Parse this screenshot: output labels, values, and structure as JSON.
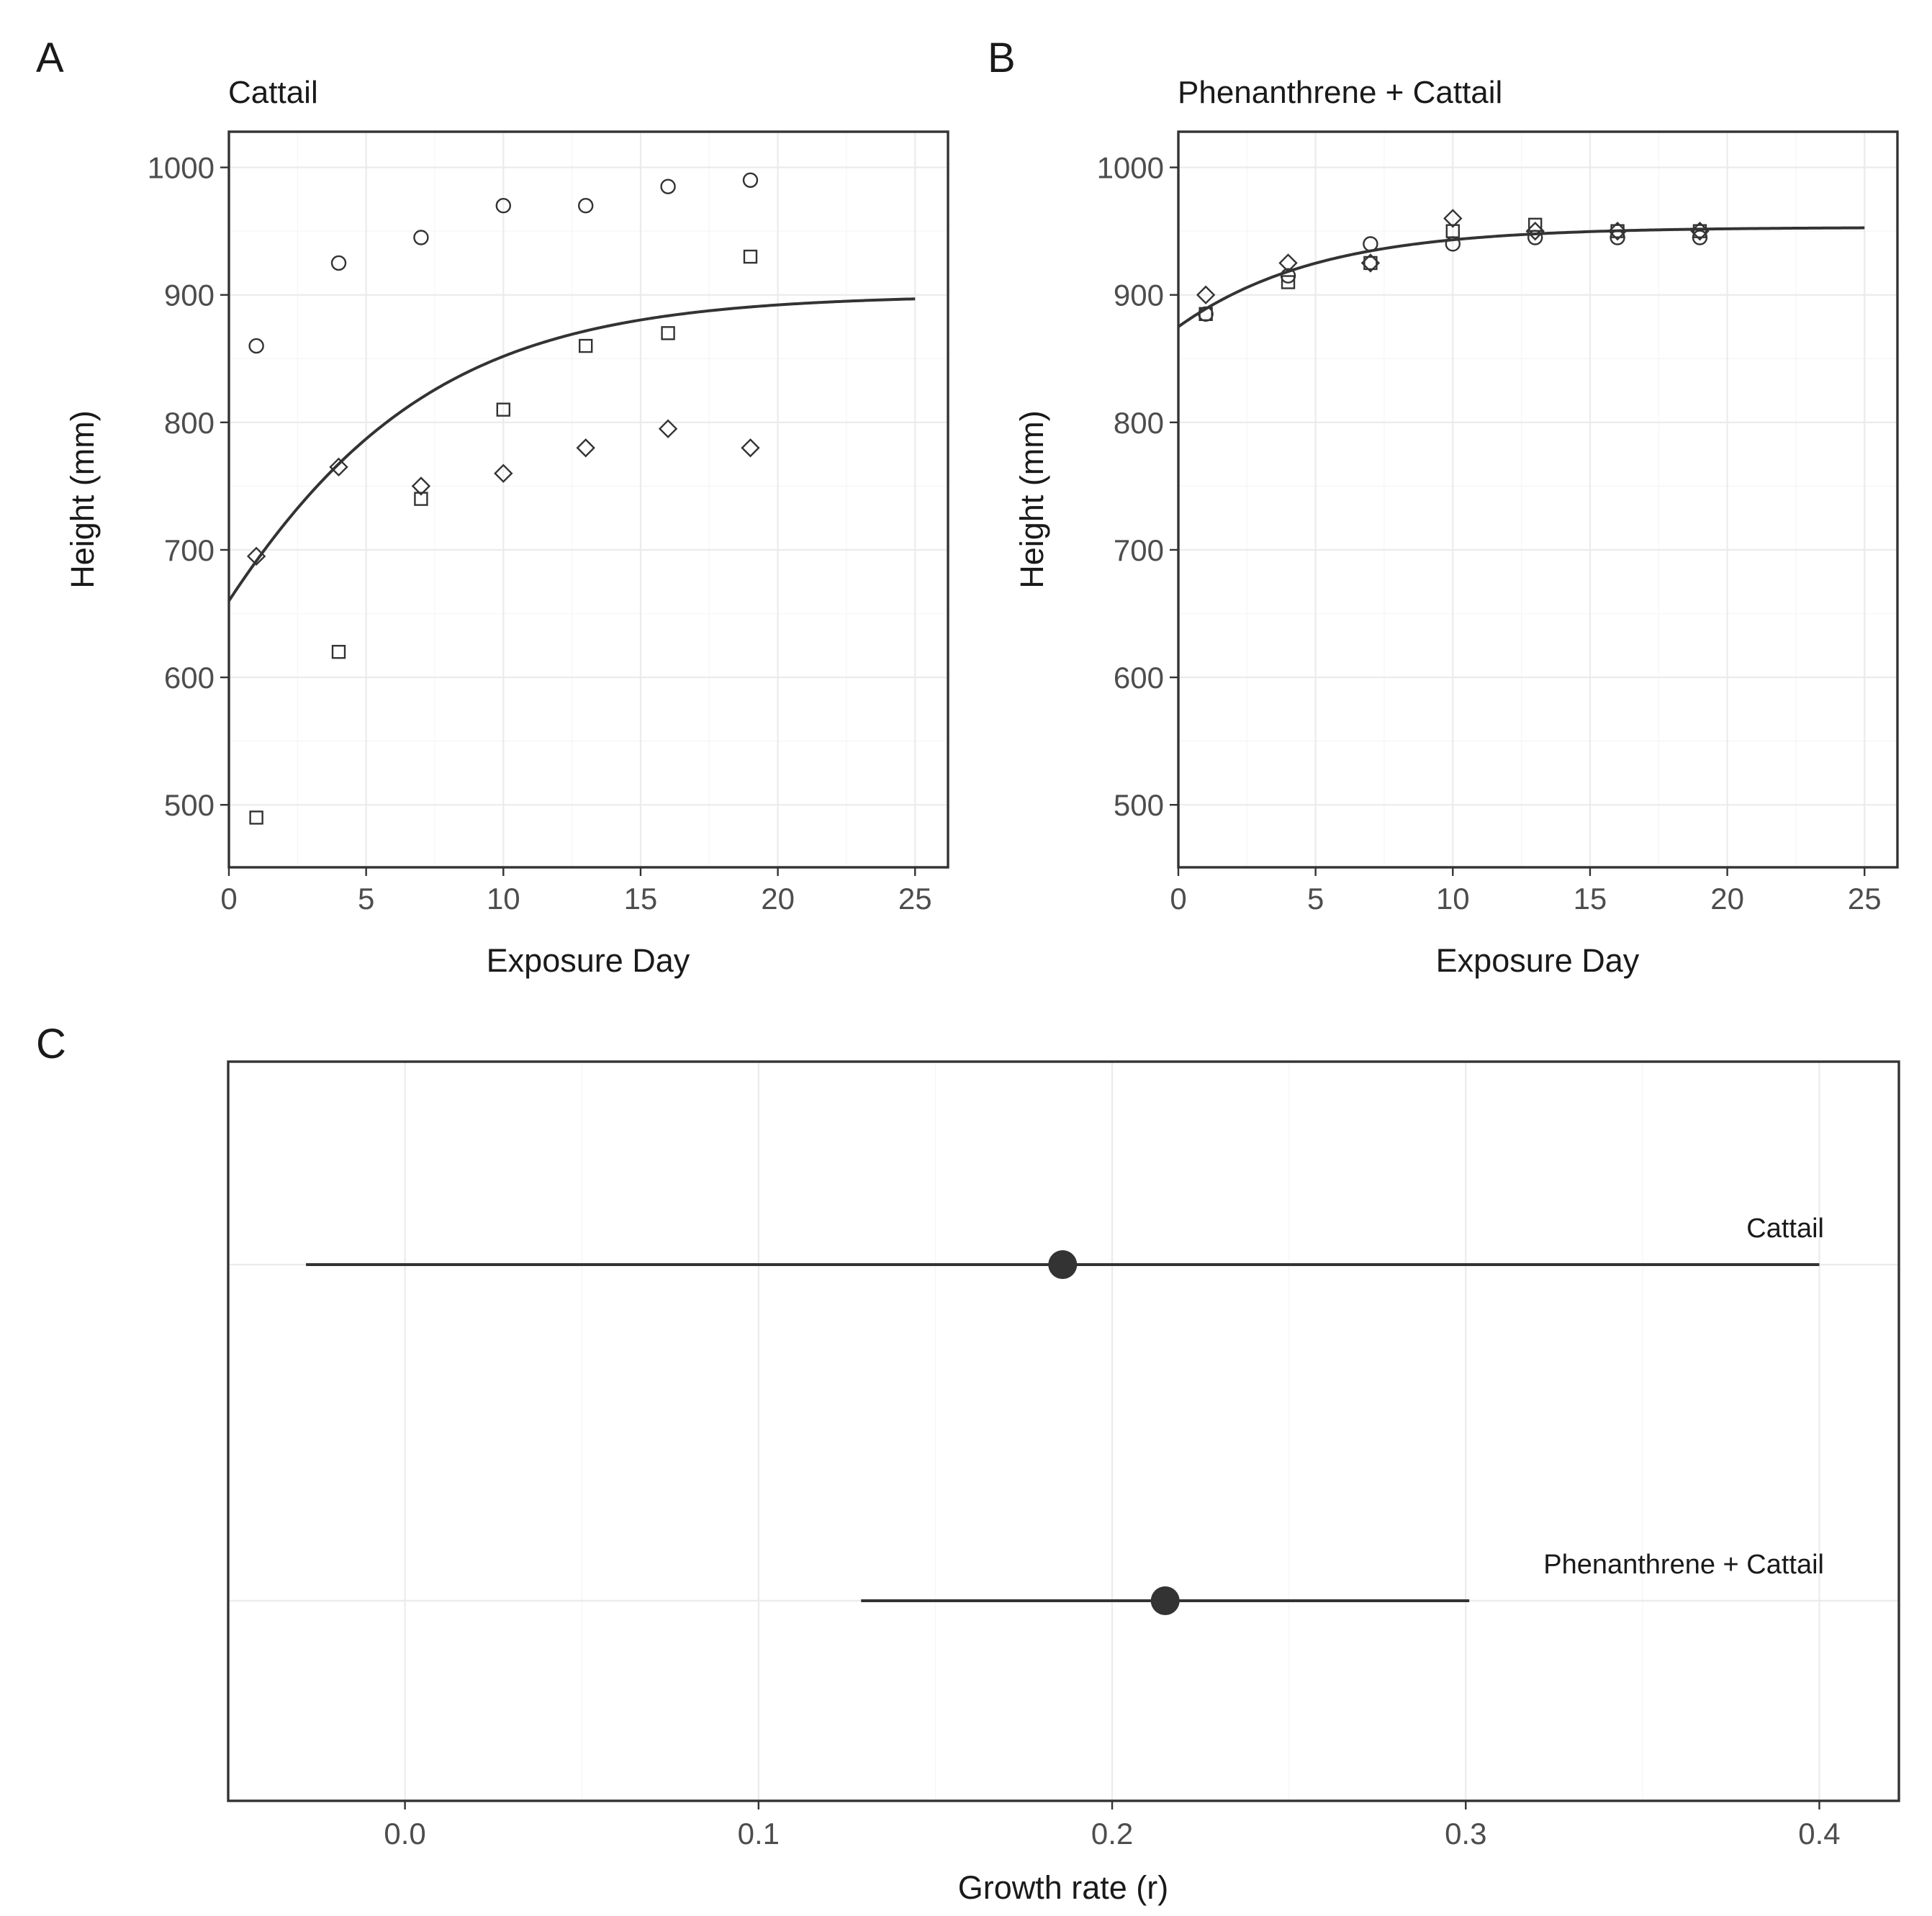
{
  "chart_data": [
    {
      "panel": "A",
      "type": "scatter",
      "title": "Cattail",
      "xlabel": "Exposure Day",
      "ylabel": "Height (mm)",
      "xlim": [
        0,
        26.2
      ],
      "ylim": [
        451,
        1028
      ],
      "xticks": [
        0,
        5,
        10,
        15,
        20,
        25
      ],
      "yticks": [
        500,
        600,
        700,
        800,
        900,
        1000
      ],
      "grid": true,
      "series": [
        {
          "name": "replicate-circle",
          "marker": "circle",
          "x": [
            1,
            4,
            7,
            10,
            13,
            16,
            19
          ],
          "y": [
            860,
            925,
            945,
            970,
            970,
            985,
            990
          ]
        },
        {
          "name": "replicate-square",
          "marker": "square",
          "x": [
            1,
            4,
            7,
            10,
            13,
            16,
            19
          ],
          "y": [
            490,
            620,
            740,
            810,
            860,
            870,
            930
          ]
        },
        {
          "name": "replicate-diamond",
          "marker": "diamond",
          "x": [
            1,
            4,
            7,
            10,
            13,
            16,
            19
          ],
          "y": [
            695,
            765,
            750,
            760,
            780,
            795,
            780
          ]
        }
      ],
      "fit": {
        "type": "logistic",
        "K": 900,
        "N0": 660,
        "r": 0.186,
        "x_range": [
          0,
          25
        ]
      }
    },
    {
      "panel": "B",
      "type": "scatter",
      "title": "Phenanthrene + Cattail",
      "xlabel": "Exposure Day",
      "ylabel": "Height (mm)",
      "xlim": [
        0,
        26.2
      ],
      "ylim": [
        451,
        1028
      ],
      "xticks": [
        0,
        5,
        10,
        15,
        20,
        25
      ],
      "yticks": [
        500,
        600,
        700,
        800,
        900,
        1000
      ],
      "grid": true,
      "series": [
        {
          "name": "replicate-circle",
          "marker": "circle",
          "x": [
            1,
            4,
            7,
            10,
            13,
            16,
            19
          ],
          "y": [
            885,
            915,
            940,
            940,
            945,
            945,
            945
          ]
        },
        {
          "name": "replicate-square",
          "marker": "square",
          "x": [
            1,
            4,
            7,
            10,
            13,
            16,
            19
          ],
          "y": [
            885,
            910,
            925,
            950,
            955,
            950,
            950
          ]
        },
        {
          "name": "replicate-diamond",
          "marker": "diamond",
          "x": [
            1,
            4,
            7,
            10,
            13,
            16,
            19
          ],
          "y": [
            900,
            925,
            925,
            960,
            950,
            950,
            950
          ]
        }
      ],
      "fit": {
        "type": "logistic",
        "K": 953,
        "N0": 875,
        "r": 0.215,
        "x_range": [
          0,
          25
        ]
      }
    },
    {
      "panel": "C",
      "type": "pointrange",
      "xlabel": "Growth rate (r)",
      "xlim": [
        -0.05,
        0.4225
      ],
      "xticks": [
        0.0,
        0.1,
        0.2,
        0.3,
        0.4
      ],
      "xtick_labels": [
        "0.0",
        "0.1",
        "0.2",
        "0.3",
        "0.4"
      ],
      "grid": true,
      "rows": [
        {
          "label": "Cattail",
          "estimate": 0.186,
          "lower": -0.028,
          "upper": 0.4
        },
        {
          "label": "Phenanthrene + Cattail",
          "estimate": 0.215,
          "lower": 0.129,
          "upper": 0.301
        }
      ]
    }
  ]
}
